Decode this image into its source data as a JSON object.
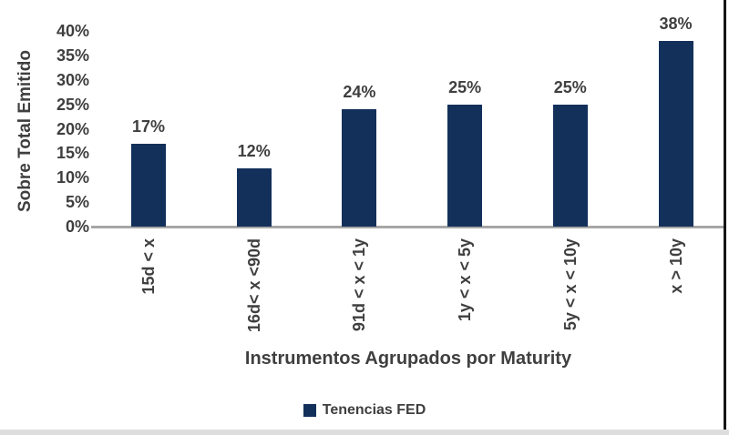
{
  "chart_data": {
    "type": "bar",
    "categories": [
      "15d < x",
      "16d< x <90d",
      "91d < x < 1y",
      "1y < x < 5y",
      "5y < x < 10y",
      "x > 10y"
    ],
    "values": [
      17,
      12,
      24,
      25,
      25,
      38
    ],
    "data_labels": [
      "17%",
      "12%",
      "24%",
      "25%",
      "25%",
      "38%"
    ],
    "title": "",
    "xlabel": "Instrumentos Agrupados por Maturity",
    "ylabel": "Sobre Total Emitido",
    "ylim": [
      0,
      40
    ],
    "ytick_step": 5,
    "ytick_labels": [
      "0%",
      "5%",
      "10%",
      "15%",
      "20%",
      "25%",
      "30%",
      "35%",
      "40%"
    ],
    "grid": false,
    "legend_position": "bottom",
    "series": [
      {
        "name": "Tenencias FED",
        "values": [
          17,
          12,
          24,
          25,
          25,
          38
        ],
        "color": "#13305b"
      }
    ],
    "colors": {
      "bar": "#13305b",
      "axis_line": "#a6a6a6",
      "label_text": "#3f3f3f",
      "right_border": "#151515",
      "bottom_border": "#dedede"
    }
  },
  "legend": {
    "label": "Tenencias FED",
    "swatch_color": "#13305b"
  }
}
